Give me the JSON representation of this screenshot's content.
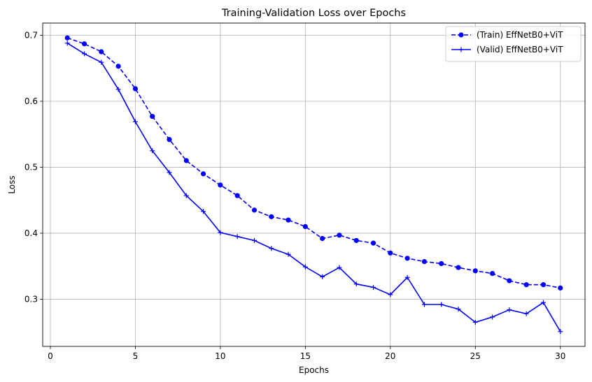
{
  "chart_data": {
    "type": "line",
    "title": "Training-Validation Loss over Epochs",
    "xlabel": "Epochs",
    "ylabel": "Loss",
    "xlim": [
      -0.45,
      31.45
    ],
    "ylim": [
      0.2285,
      0.7185
    ],
    "xticks": [
      0,
      5,
      10,
      15,
      20,
      25,
      30
    ],
    "yticks": [
      0.3,
      0.4,
      0.5,
      0.6,
      0.7
    ],
    "grid": true,
    "legend_position": "top-right",
    "x": [
      1,
      2,
      3,
      4,
      5,
      6,
      7,
      8,
      9,
      10,
      11,
      12,
      13,
      14,
      15,
      16,
      17,
      18,
      19,
      20,
      21,
      22,
      23,
      24,
      25,
      26,
      27,
      28,
      29,
      30
    ],
    "series": [
      {
        "name": "(Train) EffNetB0+ViT",
        "color": "#0000ff",
        "line_style": "dashed",
        "marker": "circle",
        "values": [
          0.696,
          0.687,
          0.675,
          0.653,
          0.619,
          0.577,
          0.542,
          0.51,
          0.49,
          0.473,
          0.457,
          0.435,
          0.425,
          0.42,
          0.41,
          0.392,
          0.397,
          0.389,
          0.385,
          0.37,
          0.362,
          0.357,
          0.354,
          0.348,
          0.343,
          0.339,
          0.328,
          0.322,
          0.322,
          0.317
        ]
      },
      {
        "name": "(Valid) EffNetB0+ViT",
        "color": "#0000ff",
        "line_style": "solid",
        "marker": "plus",
        "values": [
          0.688,
          0.672,
          0.659,
          0.618,
          0.569,
          0.525,
          0.492,
          0.457,
          0.433,
          0.401,
          0.395,
          0.389,
          0.377,
          0.368,
          0.349,
          0.334,
          0.348,
          0.323,
          0.318,
          0.307,
          0.333,
          0.292,
          0.292,
          0.285,
          0.265,
          0.273,
          0.284,
          0.278,
          0.295,
          0.251
        ]
      }
    ]
  }
}
